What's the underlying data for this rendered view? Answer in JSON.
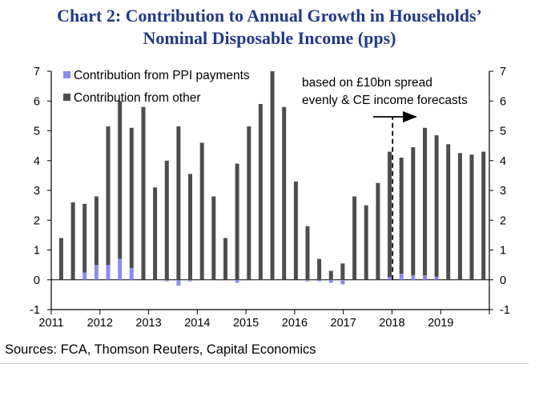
{
  "chart_data": {
    "type": "bar",
    "stacked": true,
    "title_line1": "Chart 2: Contribution to Annual Growth in Households’",
    "title_line2": "Nominal Disposable Income (pps)",
    "ylim": [
      -1,
      7
    ],
    "yticks": [
      -1,
      0,
      1,
      2,
      3,
      4,
      5,
      6,
      7
    ],
    "x_labels": [
      "2011",
      "2012",
      "2013",
      "2014",
      "2015",
      "2016",
      "2017",
      "2018",
      "2019"
    ],
    "x_start": 2011,
    "x_end": 2020,
    "forecast_start": 2018,
    "annotation_line1": "based on £10bn spread",
    "annotation_line2": "evenly & CE income forecasts",
    "series": [
      {
        "name": "Contribution from PPI payments",
        "color": "#8b8cf0",
        "values": [
          0,
          0,
          0.25,
          0.5,
          0.5,
          0.7,
          0.4,
          0,
          0,
          -0.05,
          -0.2,
          -0.05,
          0,
          0,
          0,
          -0.1,
          0,
          0,
          0,
          0,
          0,
          -0.05,
          -0.05,
          -0.1,
          -0.15,
          0,
          0,
          0,
          0.1,
          0.2,
          0.15,
          0.15,
          0.1,
          0,
          0,
          0,
          0
        ]
      },
      {
        "name": "Contribution from other",
        "color": "#4d4d4d",
        "values": [
          1.4,
          2.6,
          2.3,
          2.3,
          4.65,
          5.3,
          4.7,
          5.8,
          3.1,
          4.0,
          5.15,
          3.55,
          4.6,
          2.8,
          1.4,
          3.9,
          5.15,
          5.9,
          7.0,
          5.8,
          3.3,
          1.8,
          0.7,
          0.3,
          0.55,
          2.8,
          2.5,
          3.25,
          4.2,
          3.9,
          4.3,
          4.95,
          4.75,
          4.55,
          4.25,
          4.2,
          4.3
        ]
      }
    ]
  },
  "source": "Sources: FCA, Thomson Reuters, Capital Economics"
}
